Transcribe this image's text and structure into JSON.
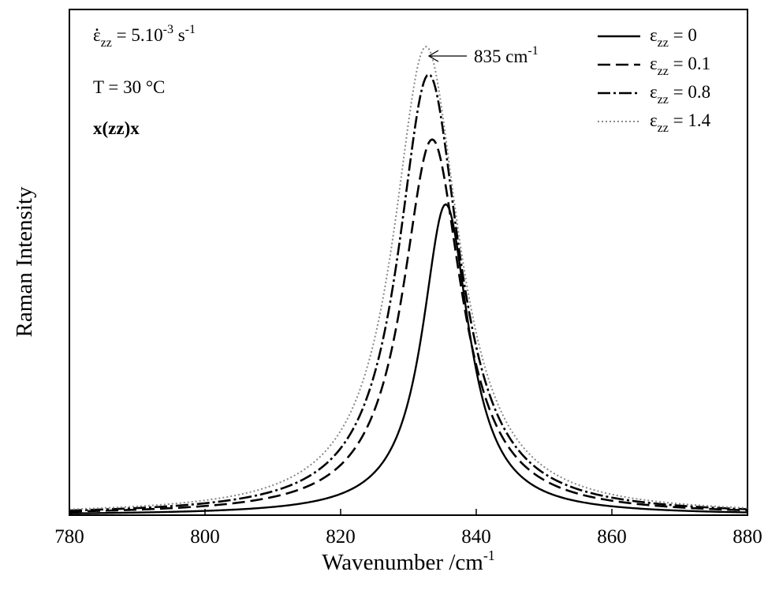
{
  "chart_data": {
    "type": "line",
    "xlabel": "Wavenumber /cm",
    "xlabel_sup": "-1",
    "ylabel": "Raman Intensity",
    "xlim": [
      780,
      880
    ],
    "ylim": [
      0,
      1.09
    ],
    "x_ticks": [
      780,
      800,
      820,
      840,
      860,
      880
    ],
    "x_tick_labels": [
      "780",
      "800",
      "820",
      "840",
      "860",
      "880"
    ],
    "y_ticks_shown": false,
    "grid": false,
    "legend_position": "top-right",
    "annotations": {
      "strain_rate": {
        "symbol": "ε̇",
        "sub": "zz",
        "text": " = 5.10",
        "sup": "-3",
        "unit": " s",
        "unit_sup": "-1"
      },
      "temperature": "T = 30 °C",
      "geometry": "x(zz)x",
      "peak_label": {
        "text": "835 cm",
        "sup": "-1"
      }
    },
    "series": [
      {
        "name_symbol": "ε",
        "name_sub": "zz",
        "name_value": " = 0",
        "color": "#000000",
        "style": "solid",
        "center": 835.5,
        "hwhm": 4.2,
        "peak": 0.67
      },
      {
        "name_symbol": "ε",
        "name_sub": "zz",
        "name_value": " = 0.1",
        "color": "#000000",
        "style": "dash",
        "center": 833.5,
        "hwhm": 5.3,
        "peak": 0.81
      },
      {
        "name_symbol": "ε",
        "name_sub": "zz",
        "name_value": " = 0.8",
        "color": "#000000",
        "style": "dashdot",
        "center": 833.0,
        "hwhm": 5.5,
        "peak": 0.95
      },
      {
        "name_symbol": "ε",
        "name_sub": "zz",
        "name_value": " = 1.4",
        "color": "#888888",
        "style": "dotted",
        "center": 832.6,
        "hwhm": 5.9,
        "peak": 1.01
      }
    ]
  }
}
